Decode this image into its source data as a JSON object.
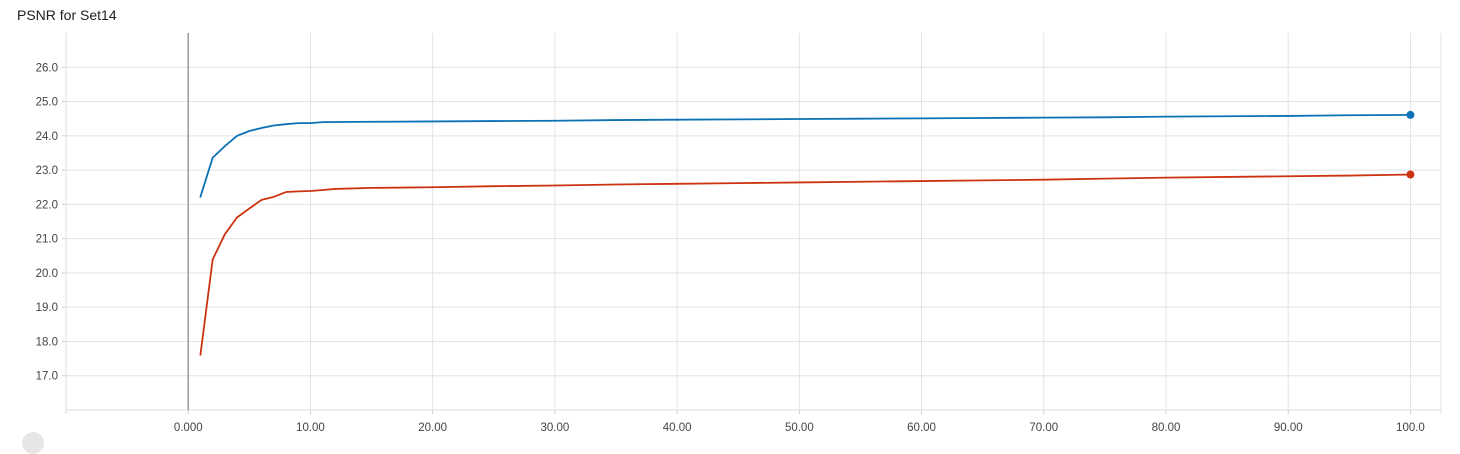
{
  "chart_data": {
    "type": "line",
    "title": "PSNR for Set14",
    "xlabel": "",
    "ylabel": "",
    "xlim": [
      -10,
      102.5
    ],
    "ylim": [
      16,
      27
    ],
    "x_ticks": [
      "0.000",
      "10.00",
      "20.00",
      "30.00",
      "40.00",
      "50.00",
      "60.00",
      "70.00",
      "80.00",
      "90.00",
      "100.0"
    ],
    "y_ticks": [
      "17.0",
      "18.0",
      "19.0",
      "20.0",
      "21.0",
      "22.0",
      "23.0",
      "24.0",
      "25.0",
      "26.0"
    ],
    "grid": true,
    "legend": "none",
    "series": [
      {
        "color": "#0b72b5",
        "x": [
          1,
          2,
          3,
          4,
          5,
          6,
          7,
          8,
          9,
          10,
          11,
          15,
          20,
          25,
          30,
          35,
          40,
          45,
          50,
          55,
          60,
          65,
          70,
          75,
          80,
          85,
          90,
          95,
          100
        ],
        "y": [
          22.22,
          23.36,
          23.7,
          24.0,
          24.14,
          24.23,
          24.3,
          24.34,
          24.37,
          24.37,
          24.4,
          24.41,
          24.42,
          24.43,
          24.44,
          24.46,
          24.47,
          24.48,
          24.49,
          24.5,
          24.51,
          24.52,
          24.53,
          24.54,
          24.56,
          24.57,
          24.58,
          24.6,
          24.61
        ]
      },
      {
        "color": "#cc3311",
        "x": [
          1,
          2,
          3,
          4,
          5,
          6,
          7,
          8,
          9,
          10,
          11,
          12,
          15,
          20,
          25,
          30,
          35,
          40,
          45,
          50,
          55,
          60,
          65,
          70,
          75,
          80,
          85,
          90,
          95,
          100
        ],
        "y": [
          17.61,
          20.39,
          21.13,
          21.62,
          21.88,
          22.13,
          22.22,
          22.36,
          22.38,
          22.39,
          22.42,
          22.45,
          22.48,
          22.5,
          22.53,
          22.55,
          22.58,
          22.6,
          22.62,
          22.64,
          22.66,
          22.68,
          22.7,
          22.72,
          22.75,
          22.78,
          22.8,
          22.82,
          22.84,
          22.87
        ]
      }
    ]
  }
}
